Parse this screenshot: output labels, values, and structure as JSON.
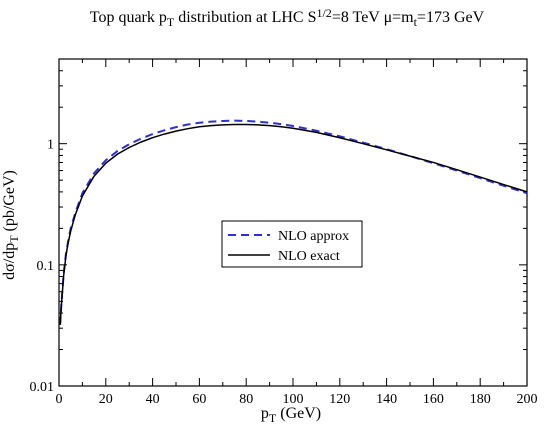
{
  "chart_data": {
    "type": "line",
    "title": {
      "main": "Top quark p",
      "main_sub": "T",
      "middle": " distribution at LHC  S",
      "sup": "1/2",
      "after_sup": "=8 TeV   μ=m",
      "after_sub": "t",
      "tail": "=173 GeV"
    },
    "xlabel": {
      "main": "p",
      "sub": "T",
      "tail": " (GeV)"
    },
    "ylabel": {
      "main": "dσ/dp",
      "sub": "T",
      "tail": " (pb/GeV)"
    },
    "xlim": [
      0,
      200
    ],
    "ylim": [
      0.01,
      5
    ],
    "yscale": "log",
    "xticks": [
      0,
      20,
      40,
      60,
      80,
      100,
      120,
      140,
      160,
      180,
      200
    ],
    "xtick_labels": [
      "0",
      "20",
      "40",
      "60",
      "80",
      "100",
      "120",
      "140",
      "160",
      "180",
      "200"
    ],
    "yticks": [
      0.01,
      0.1,
      1
    ],
    "ytick_labels": [
      "0.01",
      "0.1",
      "1"
    ],
    "grid": false,
    "legend_position": "center",
    "series": [
      {
        "name": "NLO  approx",
        "color": "#2f2fd6",
        "style": "dashed",
        "x": [
          0.5,
          1,
          2,
          3,
          4,
          5,
          7,
          10,
          15,
          20,
          25,
          30,
          35,
          40,
          45,
          50,
          55,
          60,
          65,
          70,
          75,
          80,
          85,
          90,
          95,
          100,
          110,
          120,
          130,
          140,
          150,
          160,
          170,
          180,
          190,
          200
        ],
        "y": [
          0.032,
          0.047,
          0.085,
          0.125,
          0.16,
          0.2,
          0.27,
          0.39,
          0.57,
          0.73,
          0.87,
          0.99,
          1.1,
          1.2,
          1.29,
          1.37,
          1.44,
          1.49,
          1.52,
          1.54,
          1.55,
          1.54,
          1.52,
          1.49,
          1.45,
          1.4,
          1.28,
          1.15,
          1.02,
          0.9,
          0.79,
          0.69,
          0.6,
          0.52,
          0.45,
          0.39
        ]
      },
      {
        "name": "NLO  exact",
        "color": "#000000",
        "style": "solid",
        "x": [
          0.5,
          1,
          2,
          3,
          4,
          5,
          7,
          10,
          15,
          20,
          25,
          30,
          35,
          40,
          45,
          50,
          55,
          60,
          65,
          70,
          75,
          80,
          85,
          90,
          95,
          100,
          110,
          120,
          130,
          140,
          150,
          160,
          170,
          180,
          190,
          200
        ],
        "y": [
          0.032,
          0.046,
          0.082,
          0.12,
          0.155,
          0.19,
          0.26,
          0.37,
          0.54,
          0.69,
          0.82,
          0.93,
          1.03,
          1.12,
          1.2,
          1.27,
          1.33,
          1.38,
          1.41,
          1.43,
          1.44,
          1.44,
          1.43,
          1.41,
          1.38,
          1.34,
          1.24,
          1.12,
          1.0,
          0.89,
          0.79,
          0.7,
          0.61,
          0.53,
          0.46,
          0.4
        ]
      }
    ]
  }
}
